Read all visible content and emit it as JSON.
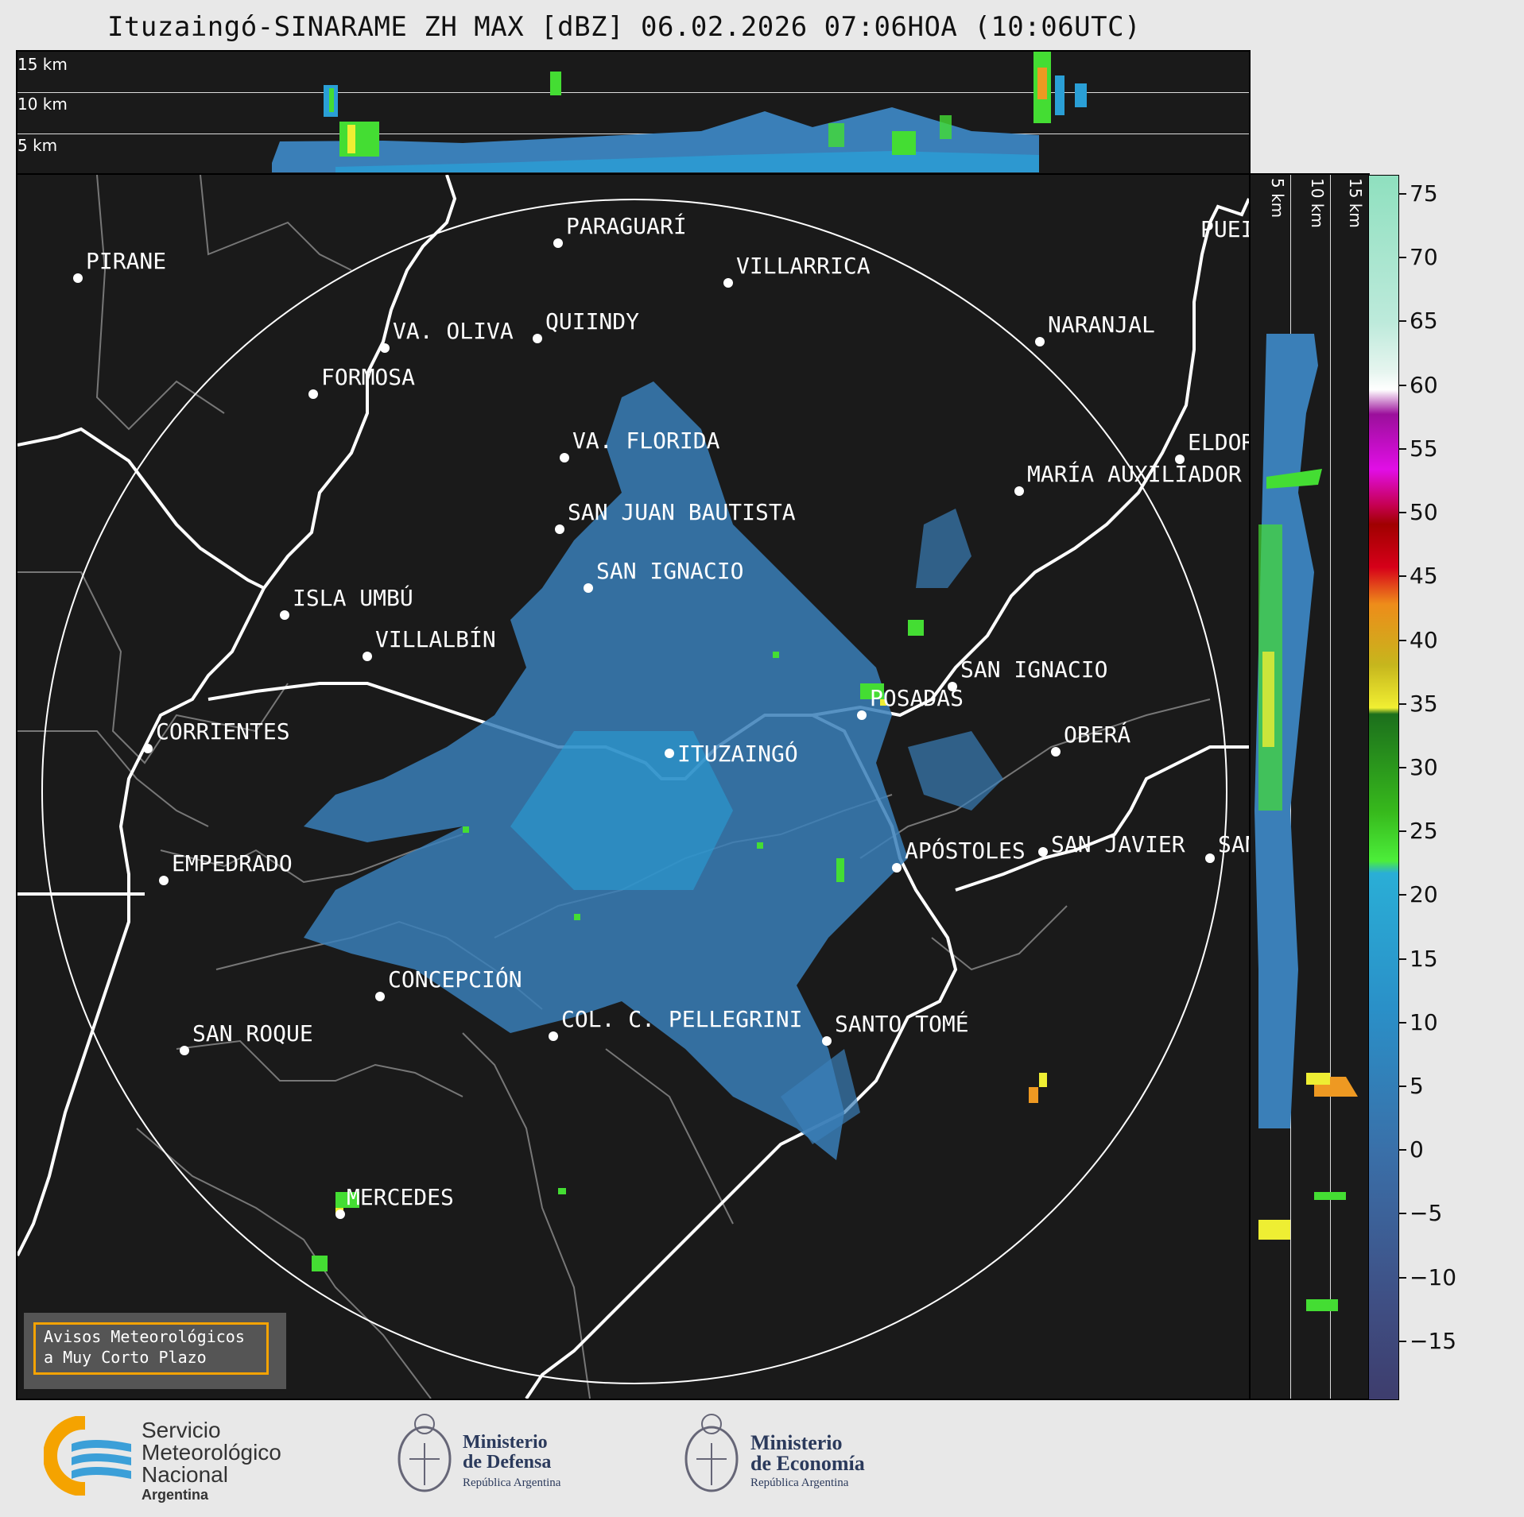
{
  "title": "Ituzaingó-SINARAME ZH MAX [dBZ] 06.02.2026 07:06HOA (10:06UTC)",
  "height_labels": {
    "h15": "15 km",
    "h10": "10 km",
    "h5": "5 km"
  },
  "cities": [
    {
      "name": "PARAGUARÍ"
    },
    {
      "name": "PIRANE"
    },
    {
      "name": "VILLARRICA"
    },
    {
      "name": "VA. OLIVA"
    },
    {
      "name": "QUIINDY"
    },
    {
      "name": "NARANJAL"
    },
    {
      "name": "FORMOSA"
    },
    {
      "name": "VA. FLORIDA"
    },
    {
      "name": "ELDOR"
    },
    {
      "name": "MARÍA AUXILIADOR"
    },
    {
      "name": "SAN JUAN BAUTISTA"
    },
    {
      "name": "SAN IGNACIO"
    },
    {
      "name": "ISLA UMBÚ"
    },
    {
      "name": "VILLALBÍN"
    },
    {
      "name": "SAN IGNACIO"
    },
    {
      "name": "POSADAS"
    },
    {
      "name": "CORRIENTES"
    },
    {
      "name": "ITUZAINGÓ"
    },
    {
      "name": "OBERÁ"
    },
    {
      "name": "EMPEDRADO"
    },
    {
      "name": "APÓSTOLES"
    },
    {
      "name": "SAN JAVIER"
    },
    {
      "name": "SAN"
    },
    {
      "name": "CONCEPCIÓN"
    },
    {
      "name": "SAN ROQUE"
    },
    {
      "name": "COL. C. PELLEGRINI"
    },
    {
      "name": "SANTO TOMÉ"
    },
    {
      "name": "MERCEDES"
    },
    {
      "name": "PUEI"
    }
  ],
  "colorbar": {
    "ticks": [
      "75",
      "70",
      "65",
      "60",
      "55",
      "50",
      "45",
      "40",
      "35",
      "30",
      "25",
      "20",
      "15",
      "10",
      "5",
      "0",
      "−5",
      "−10",
      "−15"
    ],
    "min": -19.5,
    "max": 76.5,
    "unit": "dBZ"
  },
  "avisos": {
    "line1": "Avisos Meteorológicos",
    "line2": "a Muy Corto Plazo"
  },
  "logos": {
    "smn": {
      "line1": "Servicio",
      "line2": "Meteorológico",
      "line3": "Nacional",
      "line4": "Argentina"
    },
    "defensa": {
      "line1": "Ministerio",
      "line2": "de Defensa",
      "line3": "República Argentina"
    },
    "economia": {
      "line1": "Ministerio",
      "line2": "de Economía",
      "line3": "República Argentina"
    }
  },
  "colors": {
    "background": "#e8e8e8",
    "map": "#1a1a1a",
    "echo_low": "#3a7fb8",
    "echo_mid": "#2a9fd6",
    "echo_green": "#44dd33",
    "echo_yellow": "#eeee33",
    "echo_orange": "#ee9922"
  }
}
